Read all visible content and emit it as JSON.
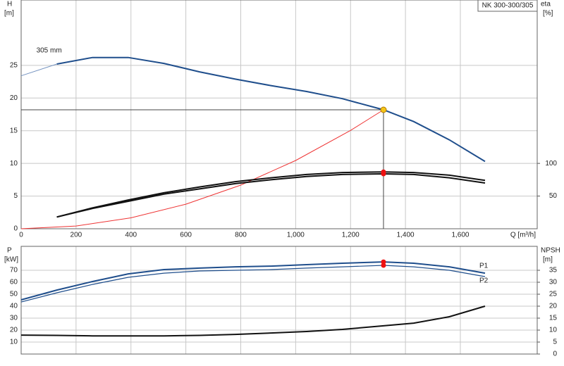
{
  "chart_data": [
    {
      "type": "line",
      "title": "NK 300-300/305",
      "ylabel": "H",
      "yunit": "[m]",
      "y2label": "eta",
      "y2unit": "[%]",
      "xlabel": "Q [m³/h]",
      "annotations": [
        {
          "text": "305 mm",
          "x": 40,
          "y": 26.2
        }
      ],
      "xlim": [
        0,
        1880
      ],
      "xticks": [
        0,
        200,
        400,
        600,
        800,
        {
          "value": 1000,
          "label": "1,000"
        },
        {
          "value": 1200,
          "label": "1,200"
        },
        {
          "value": 1400,
          "label": "1,400"
        },
        {
          "value": 1600,
          "label": "1,600"
        }
      ],
      "ylim": [
        0,
        35
      ],
      "yticks": [
        0,
        5,
        10,
        15,
        20,
        25
      ],
      "y2lim": [
        0,
        350
      ],
      "y2ticks": [
        50,
        100
      ],
      "grid": true,
      "series": [
        {
          "color": "#7593c0",
          "width": 1,
          "x": [
            0,
            130
          ],
          "values": [
            23.4,
            25.2
          ]
        },
        {
          "color": "#1f4e8c",
          "width": 2,
          "x": [
            130,
            260,
            390,
            520,
            650,
            780,
            910,
            1040,
            1170,
            1320,
            1430,
            1560,
            1690
          ],
          "values": [
            25.2,
            26.2,
            26.2,
            25.3,
            24.0,
            22.9,
            21.9,
            21.0,
            19.9,
            18.2,
            16.4,
            13.6,
            10.3
          ]
        },
        {
          "color": "#ee3333",
          "width": 1,
          "x": [
            0,
            200,
            400,
            600,
            800,
            1000,
            1200,
            1320
          ],
          "values": [
            0,
            0.42,
            1.67,
            3.76,
            6.68,
            10.45,
            15.04,
            18.2
          ]
        },
        {
          "color": "#111111",
          "width": 2,
          "axis": "y2",
          "x": [
            130,
            260,
            390,
            520,
            650,
            780,
            910,
            1040,
            1170,
            1320,
            1430,
            1560,
            1690
          ],
          "values": [
            18,
            32,
            44,
            55,
            64,
            72,
            78,
            83,
            86,
            87,
            86,
            82,
            74
          ]
        },
        {
          "color": "#111111",
          "width": 2,
          "axis": "y2",
          "x": [
            130,
            260,
            390,
            520,
            650,
            780,
            910,
            1040,
            1170,
            1320,
            1430,
            1560,
            1690
          ],
          "values": [
            18,
            31,
            42,
            53,
            61,
            69,
            75,
            80,
            83,
            84,
            83,
            78,
            70
          ]
        }
      ],
      "operating_point": {
        "x": 1320,
        "y": 18.2,
        "color": "#f5c518"
      },
      "highlight": {
        "x": 1320,
        "color": "#ee1111"
      }
    },
    {
      "type": "line",
      "ylabel": "P",
      "yunit": "[kW]",
      "y2label": "NPSH",
      "y2unit": "[m]",
      "xlim": [
        0,
        1880
      ],
      "xticks": [
        0,
        200,
        400,
        600,
        800,
        {
          "value": 1000,
          "label": "1,000"
        },
        {
          "value": 1200,
          "label": "1,200"
        },
        {
          "value": 1400,
          "label": "1,400"
        },
        {
          "value": 1600,
          "label": "1,600"
        }
      ],
      "ylim": [
        0,
        90
      ],
      "yticks": [
        10,
        20,
        30,
        40,
        50,
        60,
        70
      ],
      "y2lim": [
        0,
        45
      ],
      "y2ticks": [
        0,
        5,
        10,
        15,
        20,
        25,
        30,
        35
      ],
      "grid": true,
      "series": [
        {
          "name": "P1",
          "color": "#1f4e8c",
          "width": 2,
          "x": [
            0,
            130,
            260,
            390,
            520,
            650,
            780,
            910,
            1040,
            1170,
            1320,
            1430,
            1560,
            1690
          ],
          "values": [
            45.3,
            53.5,
            60.6,
            67,
            70.6,
            71.8,
            72.9,
            73.5,
            74.7,
            75.9,
            77,
            75.9,
            72.9,
            67.6
          ]
        },
        {
          "name": "P2",
          "color": "#1f4e8c",
          "width": 1.2,
          "x": [
            0,
            130,
            260,
            390,
            520,
            650,
            780,
            910,
            1040,
            1170,
            1320,
            1430,
            1560,
            1690
          ],
          "values": [
            43.5,
            51.2,
            58.2,
            64.1,
            67.6,
            69.4,
            70,
            70.6,
            71.8,
            72.9,
            74.1,
            72.9,
            70,
            64.7
          ]
        },
        {
          "color": "#111111",
          "width": 2,
          "axis": "y2",
          "x": [
            0,
            130,
            260,
            390,
            520,
            650,
            780,
            910,
            1040,
            1170,
            1320,
            1430,
            1560,
            1690
          ],
          "values": [
            7.9,
            7.8,
            7.6,
            7.6,
            7.6,
            7.8,
            8.2,
            8.8,
            9.4,
            10.3,
            11.8,
            12.9,
            15.6,
            20
          ]
        }
      ],
      "highlight": {
        "x": 1320,
        "color": "#ee1111"
      }
    }
  ]
}
